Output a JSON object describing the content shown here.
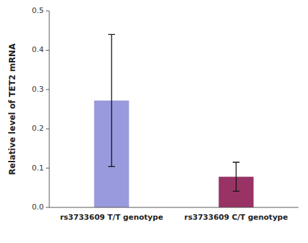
{
  "chart_data": {
    "type": "bar",
    "categories": [
      "rs3733609 T/T genotype",
      "rs3733609 C/T genotype"
    ],
    "values": [
      0.272,
      0.078
    ],
    "errors": [
      0.168,
      0.037
    ],
    "colors": [
      "#9999dd",
      "#993366"
    ],
    "ylabel": "Relative level of TET2 mRNA",
    "ylim": [
      0,
      0.5
    ],
    "yticks": [
      {
        "value": 0,
        "label": "0.0"
      },
      0.1,
      0.2,
      0.3,
      0.4,
      0.5
    ]
  }
}
